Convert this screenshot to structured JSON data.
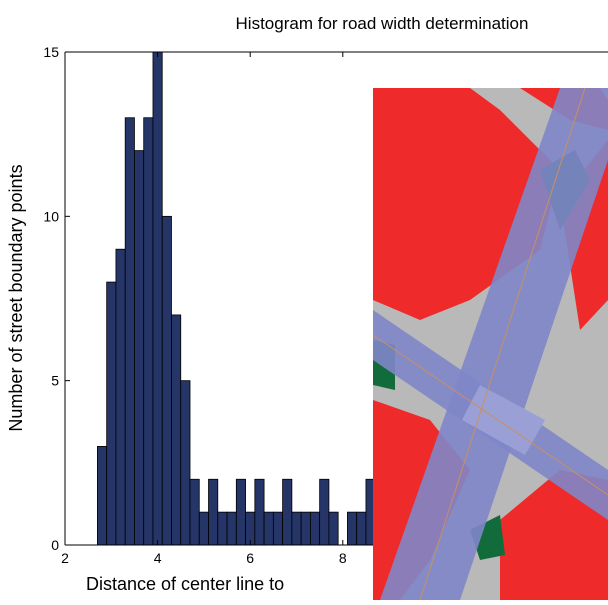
{
  "chart_data": {
    "type": "histogram",
    "title": "Histogram for road width determination",
    "x_label": "Distance of center line to",
    "y_label": "Number of street boundary points",
    "bins": [
      2.7,
      2.9,
      3.1,
      3.3,
      3.5,
      3.7,
      3.9,
      4.1,
      4.3,
      4.5,
      4.7,
      4.9,
      5.1,
      5.3,
      5.5,
      5.7,
      5.9,
      6.1,
      6.3,
      6.5,
      6.7,
      6.9,
      7.1,
      7.3,
      7.5,
      7.7,
      7.9,
      8.1,
      8.3,
      8.5,
      8.7
    ],
    "values": [
      3,
      8,
      9,
      13,
      12,
      13,
      15,
      10,
      7,
      5,
      2,
      1,
      2,
      1,
      1,
      2,
      1,
      2,
      1,
      1,
      2,
      1,
      1,
      1,
      2,
      1,
      0,
      1,
      1,
      2
    ],
    "color": "#253568",
    "xlim": [
      2,
      14
    ],
    "ylim": [
      0,
      15
    ],
    "xticks": [
      2,
      4,
      6,
      8
    ],
    "yticks": [
      0,
      5,
      10,
      15
    ]
  }
}
